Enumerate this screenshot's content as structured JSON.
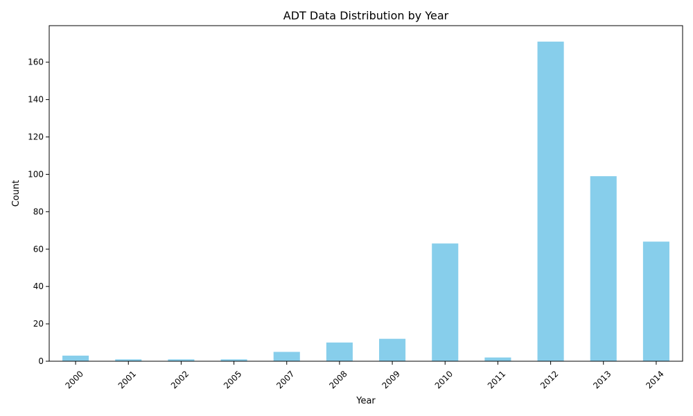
{
  "chart_data": {
    "type": "bar",
    "title": "ADT Data Distribution by Year",
    "xlabel": "Year",
    "ylabel": "Count",
    "categories": [
      "2000",
      "2001",
      "2002",
      "2005",
      "2007",
      "2008",
      "2009",
      "2010",
      "2011",
      "2012",
      "2013",
      "2014"
    ],
    "values": [
      3,
      1,
      1,
      1,
      5,
      10,
      12,
      63,
      2,
      171,
      99,
      64
    ],
    "ylim": [
      0,
      179.55
    ],
    "yticks": [
      0,
      20,
      40,
      60,
      80,
      100,
      120,
      140,
      160
    ],
    "bar_color": "#87CEEB",
    "grid": false,
    "legend": "none"
  }
}
